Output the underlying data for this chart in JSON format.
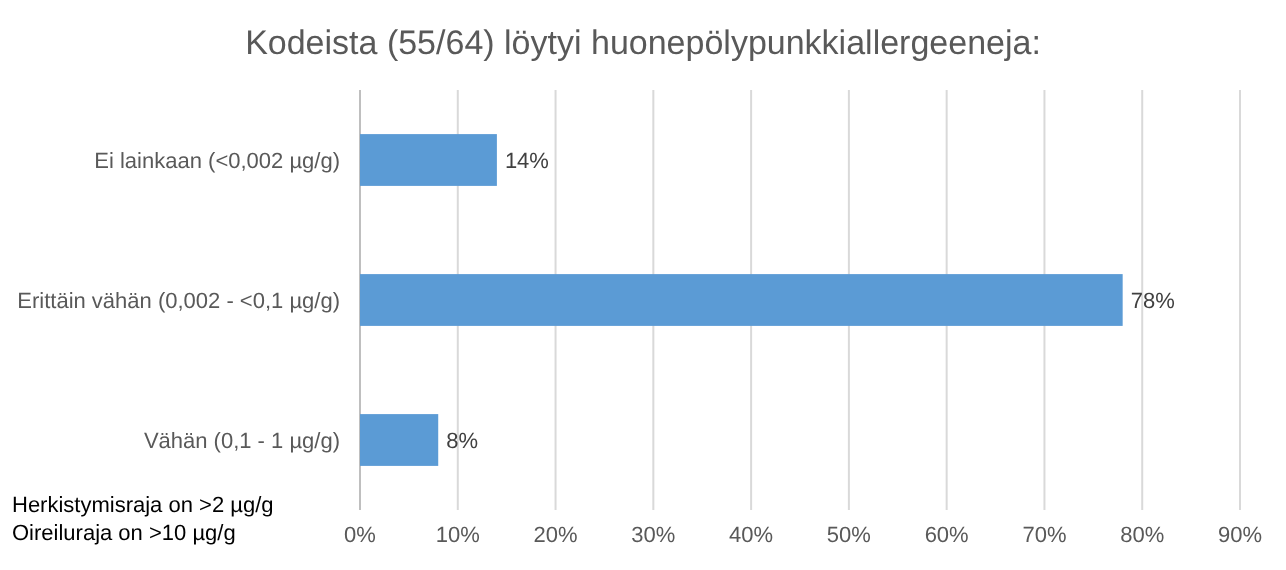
{
  "chart_data": {
    "type": "bar",
    "orientation": "horizontal",
    "title": "Kodeista (55/64) löytyi huonepölypunkkiallergeeneja:",
    "categories": [
      "Ei lainkaan (<0,002 µg/g)",
      "Erittäin vähän (0,002 - <0,1 µg/g)",
      "Vähän (0,1 - 1 µg/g)"
    ],
    "values": [
      14,
      78,
      8
    ],
    "value_labels": [
      "14%",
      "78%",
      "8%"
    ],
    "color": "#5b9bd5",
    "xlim": [
      0,
      90
    ],
    "xticks": [
      {
        "value": 0,
        "label": "0%"
      },
      {
        "value": 10,
        "label": "10%"
      },
      {
        "value": 20,
        "label": "20%"
      },
      {
        "value": 30,
        "label": "30%"
      },
      {
        "value": 40,
        "label": "40%"
      },
      {
        "value": 50,
        "label": "50%"
      },
      {
        "value": 60,
        "label": "60%"
      },
      {
        "value": 70,
        "label": "70%"
      },
      {
        "value": 80,
        "label": "80%"
      },
      {
        "value": 90,
        "label": "90%"
      }
    ],
    "grid": "x",
    "annotations": [
      "Herkistymisraja on >2 µg/g",
      "Oireiluraja on >10 µg/g"
    ]
  }
}
